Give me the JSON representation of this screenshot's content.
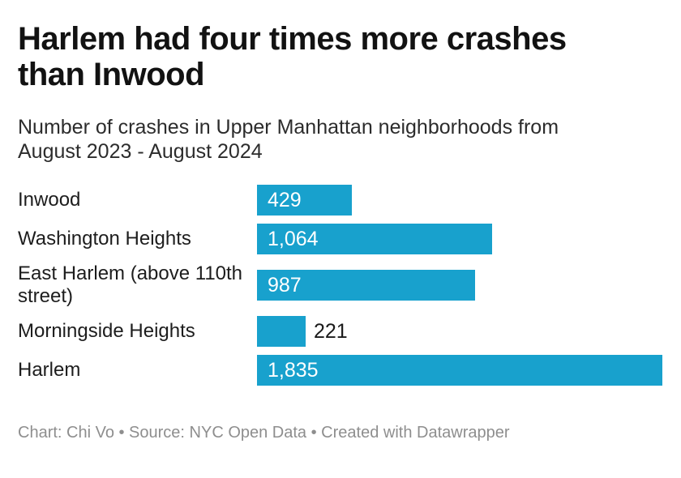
{
  "header": {
    "title_lines": [
      "Harlem had four times more crashes",
      "than Inwood"
    ],
    "subtitle_lines": [
      "Number of crashes in Upper Manhattan neighborhoods from",
      "August 2023 - August 2024"
    ]
  },
  "chart_data": {
    "type": "bar",
    "orientation": "horizontal",
    "title": "Harlem had four times more crashes than Inwood",
    "subtitle": "Number of crashes in Upper Manhattan neighborhoods from August 2023 - August 2024",
    "categories": [
      "Inwood",
      "Washington Heights",
      "East Harlem (above 110th street)",
      "Morningside Heights",
      "Harlem"
    ],
    "values": [
      429,
      1064,
      987,
      221,
      1835
    ],
    "value_labels": [
      "429",
      "1,064",
      "987",
      "221",
      "1,835"
    ],
    "xlim": [
      0,
      1835
    ],
    "grid": false,
    "legend": false,
    "bar_color": "#18a1cd",
    "value_label_inside_color": "#ffffff",
    "value_label_outside_color": "#1a1a1a"
  },
  "footer": {
    "credit": "Chart: Chi Vo • Source: NYC Open Data • Created with Datawrapper"
  }
}
